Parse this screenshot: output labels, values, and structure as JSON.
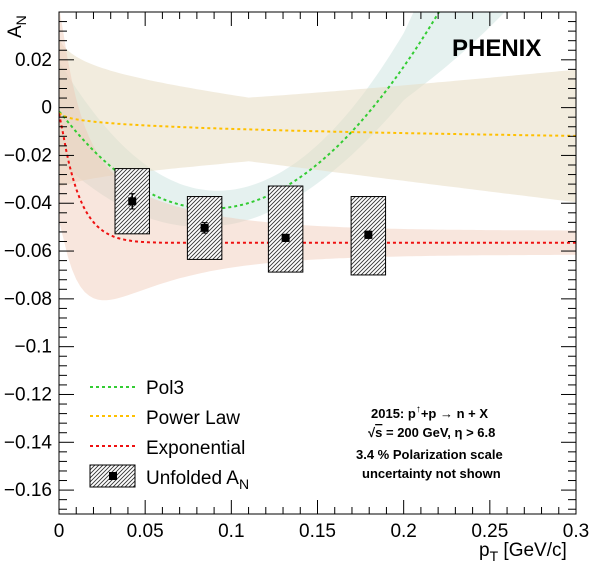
{
  "chart_data": {
    "type": "scatter",
    "experiment_label": "PHENIX",
    "xlabel_main": "p",
    "xlabel_sub": "T",
    "xlabel_unit": " [GeV/c]",
    "ylabel_main": "A",
    "ylabel_sub": "N",
    "xlim": [
      0,
      0.3
    ],
    "ylim": [
      -0.17,
      0.04
    ],
    "x_ticks": [
      {
        "value": 0,
        "label": "0"
      },
      {
        "value": 0.05,
        "label": "0.05"
      },
      {
        "value": 0.1,
        "label": "0.1"
      },
      {
        "value": 0.15,
        "label": "0.15"
      },
      {
        "value": 0.2,
        "label": "0.2"
      },
      {
        "value": 0.25,
        "label": "0.25"
      },
      {
        "value": 0.3,
        "label": "0.3"
      }
    ],
    "y_ticks": [
      {
        "value": 0.02,
        "label": "0.02"
      },
      {
        "value": 0,
        "label": "0"
      },
      {
        "value": -0.02,
        "label": "−0.02"
      },
      {
        "value": -0.04,
        "label": "−0.04"
      },
      {
        "value": -0.06,
        "label": "−0.06"
      },
      {
        "value": -0.08,
        "label": "−0.08"
      },
      {
        "value": -0.1,
        "label": "−0.1"
      },
      {
        "value": -0.12,
        "label": "−0.12"
      },
      {
        "value": -0.14,
        "label": "−0.14"
      },
      {
        "value": -0.16,
        "label": "−0.16"
      }
    ],
    "data_points": [
      {
        "x": 0.0425,
        "y": -0.0392,
        "stat_err": 0.0032,
        "sys_x_low": 0.0325,
        "sys_x_high": 0.0525,
        "sys_y_low": -0.0528,
        "sys_y_high": -0.0255
      },
      {
        "x": 0.0845,
        "y": -0.0503,
        "stat_err": 0.0022,
        "sys_x_low": 0.0745,
        "sys_x_high": 0.0945,
        "sys_y_low": -0.0635,
        "sys_y_high": -0.0372
      },
      {
        "x": 0.1315,
        "y": -0.0545,
        "stat_err": 0.0015,
        "sys_x_low": 0.1215,
        "sys_x_high": 0.1415,
        "sys_y_low": -0.0688,
        "sys_y_high": -0.0328
      },
      {
        "x": 0.1795,
        "y": -0.0532,
        "stat_err": 0.0015,
        "sys_x_low": 0.1695,
        "sys_x_high": 0.1895,
        "sys_y_low": -0.07,
        "sys_y_high": -0.0372
      }
    ],
    "fits": [
      {
        "name": "Pol3",
        "color": "#33cc33",
        "c0": -0.0012,
        "c1": -0.95,
        "c2": 5.72,
        "c3": -2.56
      },
      {
        "name": "Power Law",
        "color": "#ffc000",
        "amp": -0.0162,
        "exp": 0.26
      },
      {
        "name": "Exponential",
        "color": "#ee1010",
        "amp": -0.0565,
        "slope": -0.94,
        "decay": 0.0135
      }
    ],
    "bands": [
      {
        "fit": "Pol3",
        "color": "#cfe6e2",
        "opacity": 0.55
      },
      {
        "fit": "Power Law",
        "color": "#e7dcc2",
        "opacity": 0.55
      },
      {
        "fit": "Exponential",
        "color": "#f0c8b4",
        "opacity": 0.45
      }
    ],
    "legend": {
      "placement": "bottom-left",
      "entries": [
        {
          "label": "Pol3",
          "color": "#33cc33",
          "style": "dashed-line"
        },
        {
          "label": "Power Law",
          "color": "#ffc000",
          "style": "dashed-line"
        },
        {
          "label": "Exponential",
          "color": "#ee1010",
          "style": "dashed-line"
        },
        {
          "label_main": "Unfolded A",
          "label_sub": "N",
          "style": "box-marker"
        }
      ]
    },
    "annotation": {
      "line1": {
        "pre": "2015: p",
        "sup": "↑",
        "post": "+p  → n + X"
      },
      "line2": {
        "sqrt_sym": "√",
        "sqrt_arg": "s",
        "rest": " = 200 GeV, η > 6.8"
      },
      "line3": "3.4 % Polarization scale",
      "line4": "uncertainty not shown"
    }
  }
}
